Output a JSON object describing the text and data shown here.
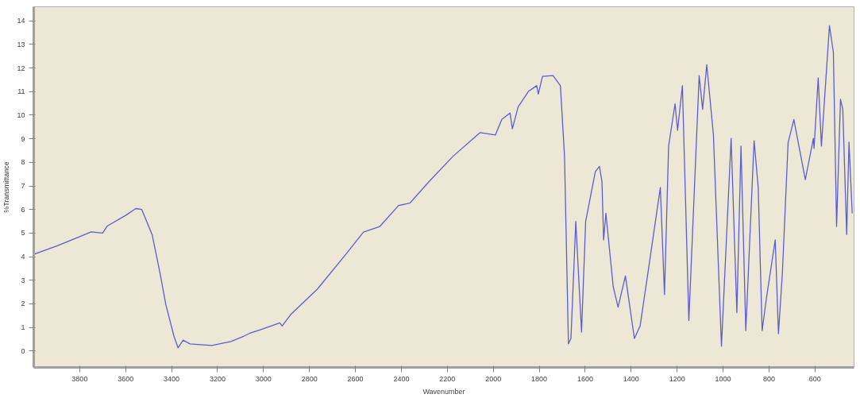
{
  "chart_data": {
    "type": "line",
    "xlabel": "Wavenumber",
    "ylabel": "%Transmittance",
    "xlim": [
      4000,
      430
    ],
    "ylim": [
      -0.7,
      14.6
    ],
    "xticks": [
      3800,
      3600,
      3400,
      3200,
      3000,
      2800,
      2600,
      2400,
      2200,
      2000,
      1800,
      1600,
      1400,
      1200,
      1000,
      800,
      600
    ],
    "yticks": [
      0,
      1,
      2,
      3,
      4,
      5,
      6,
      7,
      8,
      9,
      10,
      11,
      12,
      13,
      14
    ],
    "grid": false,
    "marker": "none",
    "line_style": "solid",
    "series": [
      {
        "color": "#5c5cd0",
        "x": [
          4000,
          3900,
          3800,
          3750,
          3700,
          3680,
          3600,
          3556,
          3530,
          3485,
          3450,
          3425,
          3390,
          3372,
          3350,
          3320,
          3226,
          3142,
          3085,
          3060,
          3014,
          2929,
          2919,
          2883,
          2766,
          2646,
          2565,
          2494,
          2412,
          2363,
          2281,
          2175,
          2058,
          1991,
          1963,
          1927,
          1917,
          1892,
          1846,
          1811,
          1804,
          1786,
          1740,
          1708,
          1690,
          1673,
          1662,
          1641,
          1616,
          1598,
          1556,
          1538,
          1527,
          1520,
          1510,
          1478,
          1457,
          1425,
          1386,
          1361,
          1326,
          1273,
          1255,
          1237,
          1209,
          1198,
          1177,
          1149,
          1104,
          1089,
          1071,
          1042,
          1007,
          965,
          940,
          922,
          901,
          865,
          847,
          830,
          812,
          773,
          759,
          742,
          717,
          692,
          642,
          607,
          604,
          586,
          572,
          537,
          520,
          506,
          489,
          479,
          462,
          452,
          438
        ],
        "values": [
          4.1,
          4.45,
          4.85,
          5.05,
          5.0,
          5.3,
          5.75,
          6.04,
          6.0,
          4.94,
          3.28,
          1.96,
          0.63,
          0.13,
          0.46,
          0.3,
          0.23,
          0.4,
          0.63,
          0.75,
          0.9,
          1.19,
          1.06,
          1.53,
          2.62,
          4.05,
          5.04,
          5.28,
          6.17,
          6.27,
          7.17,
          8.26,
          9.26,
          9.16,
          9.82,
          10.09,
          9.42,
          10.35,
          11.02,
          11.25,
          10.9,
          11.65,
          11.68,
          11.25,
          8.26,
          0.3,
          0.53,
          5.5,
          0.8,
          5.5,
          7.6,
          7.83,
          7.17,
          4.71,
          5.84,
          2.72,
          1.86,
          3.18,
          0.53,
          1.06,
          3.38,
          6.93,
          2.39,
          8.69,
          10.48,
          9.36,
          11.25,
          1.29,
          11.68,
          10.25,
          12.14,
          9.16,
          0.2,
          9.02,
          1.63,
          8.69,
          0.86,
          8.92,
          6.93,
          0.86,
          2.19,
          4.71,
          0.73,
          3.28,
          8.83,
          9.82,
          7.27,
          9.02,
          8.59,
          11.58,
          8.69,
          13.8,
          12.67,
          5.28,
          10.68,
          10.25,
          4.94,
          8.86,
          5.84
        ]
      }
    ]
  }
}
